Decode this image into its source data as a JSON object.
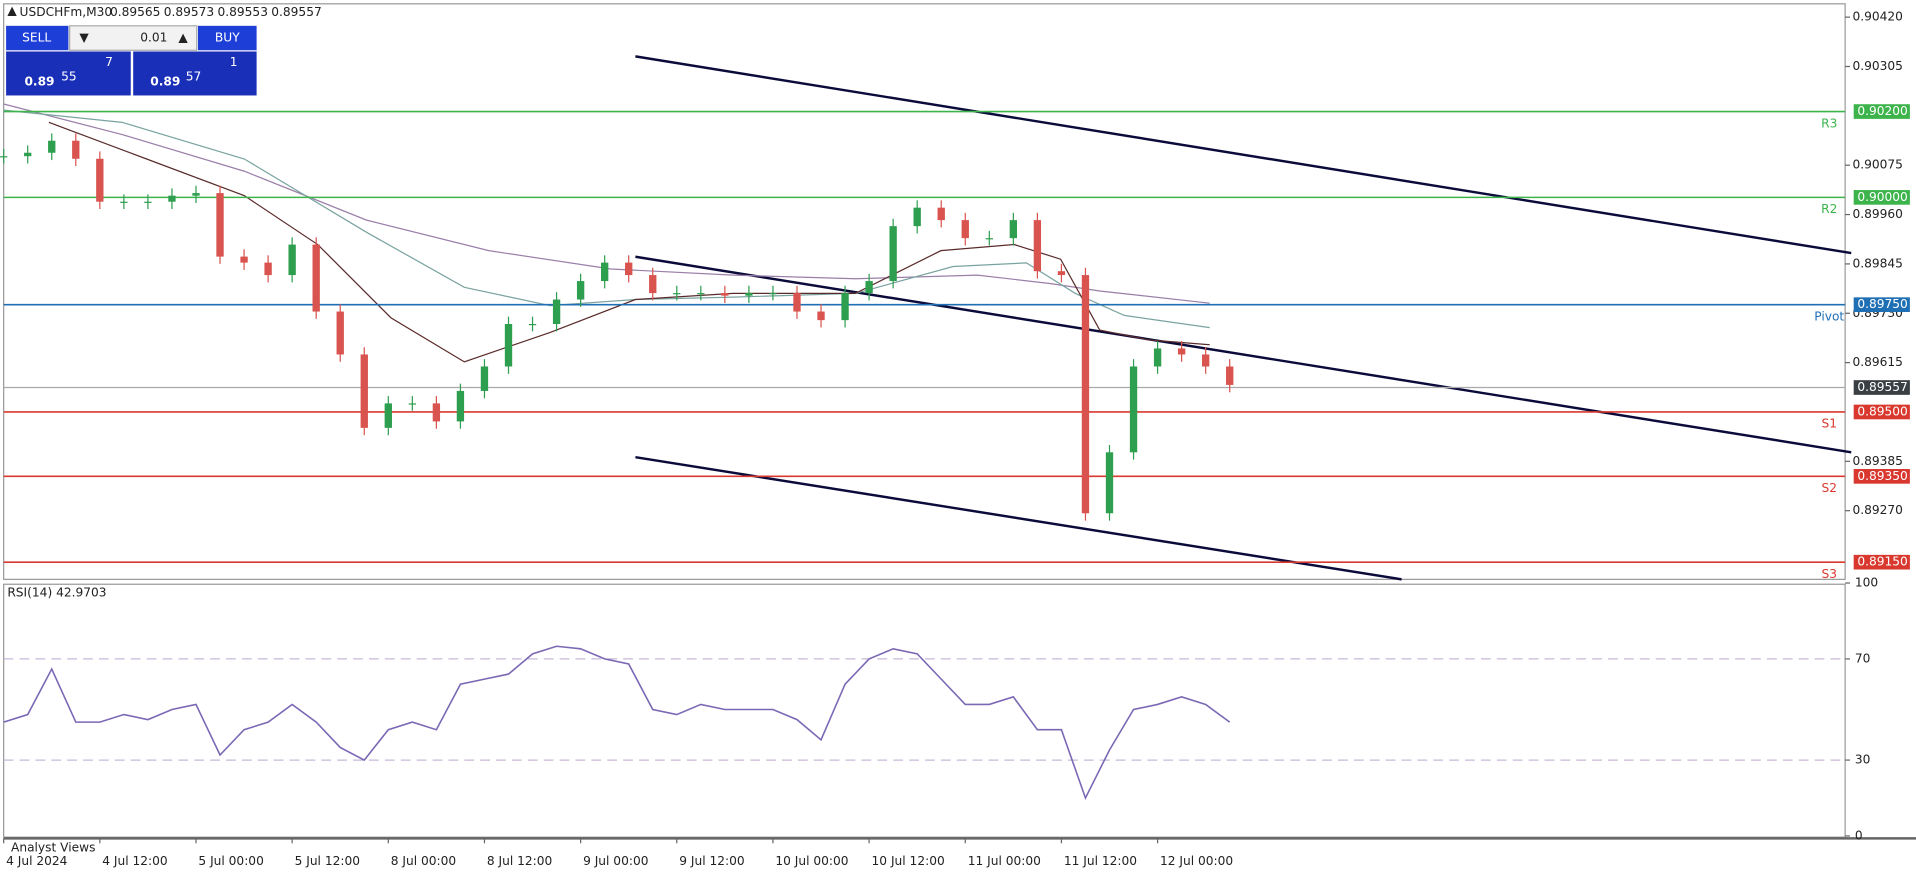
{
  "header": {
    "symbol": "USDCHFm,M30",
    "quotes": [
      "0.89565",
      "0.89573",
      "0.89553",
      "0.89557"
    ]
  },
  "trade_panel": {
    "sell": "SELL",
    "lot": "0.01",
    "buy": "BUY",
    "sell_big": "0.89",
    "sell_pips": "55",
    "sell_frac": "7",
    "buy_big": "0.89",
    "buy_pips": "57",
    "buy_frac": "1"
  },
  "footer": {
    "tab": "Analyst Views"
  },
  "chart_data": [
    {
      "type": "candlestick",
      "closes": [
        0.90096,
        0.90104,
        0.90132,
        0.9009,
        0.8999,
        0.8999,
        0.8999,
        0.90004,
        0.9001,
        0.89862,
        0.89848,
        0.89819,
        0.8989,
        0.89734,
        0.89634,
        0.89463,
        0.8952,
        0.8952,
        0.89478,
        0.89549,
        0.89606,
        0.89705,
        0.89705,
        0.89762,
        0.89805,
        0.89848,
        0.89819,
        0.89777,
        0.89777,
        0.89777,
        0.89771,
        0.89777,
        0.89777,
        0.89734,
        0.89714,
        0.89777,
        0.89805,
        0.89933,
        0.89976,
        0.89947,
        0.89905,
        0.89905,
        0.89947,
        0.89828,
        0.89819,
        0.89264,
        0.89406,
        0.89606,
        0.89648,
        0.89634,
        0.89606,
        0.89563
      ],
      "up_color": "#2e9e4f",
      "down_color": "#d9534f",
      "xlim": [
        0,
        76.6
      ],
      "xticks": [
        {
          "value": 0,
          "label": "4 Jul 2024"
        },
        {
          "value": 4,
          "label": "4 Jul 12:00"
        },
        {
          "value": 8,
          "label": "5 Jul 00:00"
        },
        {
          "value": 12,
          "label": "5 Jul 12:00"
        },
        {
          "value": 16,
          "label": "8 Jul 00:00"
        },
        {
          "value": 20,
          "label": "8 Jul 12:00"
        },
        {
          "value": 24,
          "label": "9 Jul 00:00"
        },
        {
          "value": 28,
          "label": "9 Jul 12:00"
        },
        {
          "value": 32,
          "label": "10 Jul 00:00"
        },
        {
          "value": 36,
          "label": "10 Jul 12:00"
        },
        {
          "value": 40,
          "label": "11 Jul 00:00"
        },
        {
          "value": 44,
          "label": "11 Jul 12:00"
        },
        {
          "value": 48,
          "label": "12 Jul 00:00"
        }
      ],
      "ylim": [
        0.8911,
        0.90451
      ],
      "yticks": [
        {
          "value": 0.9042,
          "label": "0.90420"
        },
        {
          "value": 0.90305,
          "label": "0.90305"
        },
        {
          "value": 0.90075,
          "label": "0.90075"
        },
        {
          "value": 0.8996,
          "label": "0.89960"
        },
        {
          "value": 0.89845,
          "label": "0.89845"
        },
        {
          "value": 0.8973,
          "label": "0.89730"
        },
        {
          "value": 0.89615,
          "label": "0.89615"
        },
        {
          "value": 0.89385,
          "label": "0.89385"
        },
        {
          "value": 0.8927,
          "label": "0.89270"
        }
      ],
      "levels": [
        {
          "name": "R3",
          "value": 0.902,
          "label": "0.90200",
          "color": "#3cb44b"
        },
        {
          "name": "R2",
          "value": 0.9,
          "label": "0.90000",
          "color": "#3cb44b"
        },
        {
          "name": "Pivot",
          "value": 0.8975,
          "label": "0.89750",
          "color": "#1f6fb5"
        },
        {
          "name": "S1",
          "value": 0.895,
          "label": "0.89500",
          "color": "#d9382e"
        },
        {
          "name": "S2",
          "value": 0.8935,
          "label": "0.89350",
          "color": "#d9382e"
        },
        {
          "name": "S3",
          "value": 0.8915,
          "label": "0.89150",
          "color": "#d9382e"
        }
      ],
      "current": {
        "value": 0.89557,
        "label": "0.89557",
        "color": "#3a3f44"
      }
    },
    {
      "type": "line",
      "title": "RSI(14) 42.9703",
      "color": "#7b68b5",
      "values": [
        45,
        48,
        66,
        45,
        45,
        48,
        46,
        50,
        52,
        32,
        42,
        45,
        52,
        45,
        35,
        30,
        42,
        45,
        42,
        60,
        62,
        64,
        72,
        75,
        74,
        70,
        68,
        50,
        48,
        52,
        50,
        50,
        50,
        46,
        38,
        60,
        70,
        74,
        72,
        62,
        52,
        52,
        55,
        42,
        42,
        15,
        34,
        50,
        52,
        55,
        52,
        45
      ],
      "xlim": [
        0,
        76.6
      ],
      "ylim": [
        0,
        100
      ],
      "yticks": [
        0,
        30,
        70,
        100
      ],
      "dashed_levels": [
        30,
        70
      ]
    }
  ]
}
